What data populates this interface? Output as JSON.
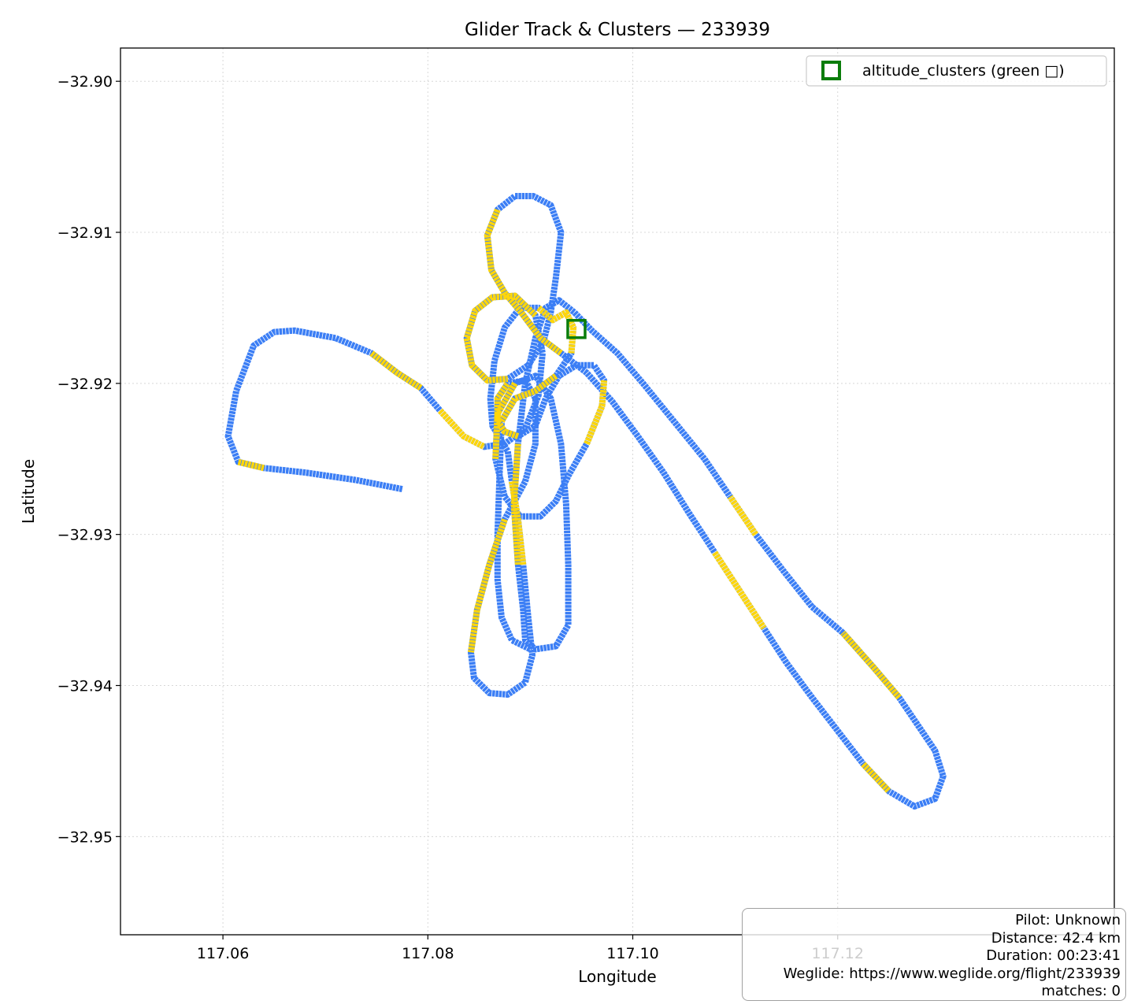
{
  "chart_data": {
    "type": "line",
    "title": "Glider Track & Clusters — 233939",
    "xlabel": "Longitude",
    "ylabel": "Latitude",
    "xlim": [
      117.05,
      117.147
    ],
    "ylim": [
      -32.9565,
      -32.8978
    ],
    "x_ticks": [
      117.06,
      117.08,
      117.1,
      117.12
    ],
    "x_tick_labels": [
      "117.06",
      "117.08",
      "117.10",
      "117.12"
    ],
    "y_ticks": [
      -32.9,
      -32.91,
      -32.92,
      -32.93,
      -32.94,
      -32.95
    ],
    "y_tick_labels": [
      "−32.90",
      "−32.91",
      "−32.92",
      "−32.93",
      "−32.94",
      "−32.95"
    ],
    "grid": true,
    "legend": {
      "placement": "top-right",
      "label": "altitude_clusters (green □)"
    },
    "colors": {
      "track": "#3b7ef5",
      "highlight": "#ffd60a",
      "cluster": "#0a7d0a",
      "grid": "#d8d8d8"
    },
    "series": [
      {
        "type": "track",
        "points": [
          [
            117.0775,
            -32.927
          ],
          [
            117.073,
            -32.9264
          ],
          [
            117.068,
            -32.9259
          ],
          [
            117.064,
            -32.9256
          ],
          [
            117.0615,
            -32.9252
          ],
          [
            117.0605,
            -32.9235
          ],
          [
            117.0613,
            -32.9205
          ],
          [
            117.063,
            -32.9175
          ],
          [
            117.065,
            -32.9166
          ],
          [
            117.067,
            -32.9165
          ],
          [
            117.071,
            -32.917
          ],
          [
            117.0745,
            -32.918
          ],
          [
            117.077,
            -32.9193
          ],
          [
            117.0793,
            -32.9203
          ],
          [
            117.0812,
            -32.9218
          ],
          [
            117.0835,
            -32.9235
          ],
          [
            117.0855,
            -32.9242
          ],
          [
            117.0875,
            -32.924
          ],
          [
            117.0895,
            -32.923
          ],
          [
            117.0908,
            -32.9208
          ],
          [
            117.0912,
            -32.918
          ],
          [
            117.0905,
            -32.9155
          ],
          [
            117.0885,
            -32.9142
          ],
          [
            117.0863,
            -32.9143
          ],
          [
            117.0846,
            -32.9152
          ],
          [
            117.0838,
            -32.917
          ],
          [
            117.0843,
            -32.9188
          ],
          [
            117.0858,
            -32.9198
          ],
          [
            117.0878,
            -32.9197
          ],
          [
            117.0898,
            -32.9188
          ],
          [
            117.0913,
            -32.9172
          ],
          [
            117.092,
            -32.9153
          ],
          [
            117.0925,
            -32.913
          ],
          [
            117.093,
            -32.91
          ],
          [
            117.092,
            -32.9082
          ],
          [
            117.0903,
            -32.9076
          ],
          [
            117.0885,
            -32.9076
          ],
          [
            117.0868,
            -32.9085
          ],
          [
            117.0858,
            -32.9102
          ],
          [
            117.0862,
            -32.9125
          ],
          [
            117.0875,
            -32.914
          ],
          [
            117.089,
            -32.9152
          ],
          [
            117.091,
            -32.917
          ],
          [
            117.093,
            -32.918
          ],
          [
            117.0955,
            -32.9193
          ],
          [
            117.098,
            -32.9212
          ],
          [
            117.1005,
            -32.9235
          ],
          [
            117.103,
            -32.9259
          ],
          [
            117.1055,
            -32.9286
          ],
          [
            117.108,
            -32.9312
          ],
          [
            117.1105,
            -32.9338
          ],
          [
            117.1128,
            -32.9362
          ],
          [
            117.115,
            -32.9385
          ],
          [
            117.1175,
            -32.9408
          ],
          [
            117.12,
            -32.943
          ],
          [
            117.1225,
            -32.9452
          ],
          [
            117.125,
            -32.947
          ],
          [
            117.1275,
            -32.948
          ],
          [
            117.1295,
            -32.9475
          ],
          [
            117.1303,
            -32.946
          ],
          [
            117.1295,
            -32.9443
          ],
          [
            117.128,
            -32.9428
          ],
          [
            117.126,
            -32.9408
          ],
          [
            117.1235,
            -32.9388
          ],
          [
            117.1205,
            -32.9365
          ],
          [
            117.1175,
            -32.9348
          ],
          [
            117.1148,
            -32.9325
          ],
          [
            117.112,
            -32.93
          ],
          [
            117.1095,
            -32.9275
          ],
          [
            117.107,
            -32.925
          ],
          [
            117.104,
            -32.9225
          ],
          [
            117.101,
            -32.92
          ],
          [
            117.0985,
            -32.918
          ],
          [
            117.096,
            -32.9165
          ],
          [
            117.0943,
            -32.9153
          ],
          [
            117.0928,
            -32.9145
          ],
          [
            117.0915,
            -32.915
          ],
          [
            117.0905,
            -32.917
          ],
          [
            117.0895,
            -32.92
          ],
          [
            117.0888,
            -32.924
          ],
          [
            117.0884,
            -32.928
          ],
          [
            117.0888,
            -32.932
          ],
          [
            117.0893,
            -32.935
          ],
          [
            117.0895,
            -32.937
          ],
          [
            117.0905,
            -32.9376
          ],
          [
            117.0925,
            -32.9374
          ],
          [
            117.0937,
            -32.936
          ],
          [
            117.0937,
            -32.932
          ],
          [
            117.0935,
            -32.928
          ],
          [
            117.093,
            -32.924
          ],
          [
            117.092,
            -32.921
          ],
          [
            117.0905,
            -32.9195
          ],
          [
            117.0885,
            -32.92
          ],
          [
            117.0868,
            -32.922
          ],
          [
            117.0866,
            -32.925
          ],
          [
            117.0875,
            -32.9275
          ],
          [
            117.089,
            -32.9288
          ],
          [
            117.091,
            -32.9288
          ],
          [
            117.0925,
            -32.9278
          ],
          [
            117.0938,
            -32.926
          ],
          [
            117.0955,
            -32.924
          ],
          [
            117.097,
            -32.9215
          ],
          [
            117.0972,
            -32.9198
          ],
          [
            117.0962,
            -32.9188
          ],
          [
            117.0945,
            -32.9188
          ],
          [
            117.0928,
            -32.9195
          ],
          [
            117.0915,
            -32.921
          ],
          [
            117.0905,
            -32.9228
          ],
          [
            117.0888,
            -32.9235
          ],
          [
            117.0875,
            -32.9232
          ],
          [
            117.0868,
            -32.9225
          ],
          [
            117.0868,
            -32.921
          ],
          [
            117.0878,
            -32.92
          ],
          [
            117.0895,
            -32.9198
          ],
          [
            117.0905,
            -32.921
          ],
          [
            117.0905,
            -32.924
          ],
          [
            117.0895,
            -32.9265
          ],
          [
            117.0875,
            -32.929
          ],
          [
            117.086,
            -32.932
          ],
          [
            117.0848,
            -32.935
          ],
          [
            117.0842,
            -32.9378
          ],
          [
            117.0845,
            -32.9395
          ],
          [
            117.086,
            -32.9405
          ],
          [
            117.0878,
            -32.9406
          ],
          [
            117.0895,
            -32.9398
          ],
          [
            117.0902,
            -32.938
          ],
          [
            117.0898,
            -32.9355
          ],
          [
            117.0893,
            -32.932
          ],
          [
            117.0888,
            -32.929
          ],
          [
            117.0882,
            -32.9265
          ],
          [
            117.0878,
            -32.9245
          ],
          [
            117.0863,
            -32.9228
          ],
          [
            117.0861,
            -32.921
          ],
          [
            117.0865,
            -32.9185
          ],
          [
            117.0875,
            -32.9163
          ],
          [
            117.089,
            -32.915
          ],
          [
            117.0908,
            -32.915
          ],
          [
            117.0922,
            -32.9158
          ],
          [
            117.0935,
            -32.9153
          ],
          [
            117.0942,
            -32.9163
          ],
          [
            117.094,
            -32.918
          ],
          [
            117.0925,
            -32.9195
          ],
          [
            117.0905,
            -32.9205
          ],
          [
            117.0885,
            -32.921
          ],
          [
            117.0872,
            -32.9225
          ],
          [
            117.087,
            -32.926
          ],
          [
            117.0868,
            -32.93
          ],
          [
            117.0868,
            -32.933
          ],
          [
            117.0872,
            -32.9355
          ],
          [
            117.0882,
            -32.937
          ],
          [
            117.09,
            -32.9376
          ]
        ],
        "highlight_ranges": [
          [
            3,
            4
          ],
          [
            11,
            13
          ],
          [
            14,
            16
          ],
          [
            21,
            28
          ],
          [
            37,
            43
          ],
          [
            49,
            51
          ],
          [
            55,
            56
          ],
          [
            62,
            64
          ],
          [
            67,
            68
          ],
          [
            79,
            81
          ],
          [
            92,
            94
          ],
          [
            100,
            102
          ],
          [
            108,
            112
          ],
          [
            117,
            120
          ],
          [
            127,
            129
          ],
          [
            136,
            140
          ],
          [
            141,
            144
          ]
        ]
      }
    ],
    "clusters": [
      {
        "lon": 117.0945,
        "lat": -32.9164
      }
    ]
  },
  "info": {
    "pilot": "Pilot: Unknown",
    "distance": "Distance: 42.4 km",
    "duration": "Duration: 00:23:41",
    "weglide": "Weglide: https://www.weglide.org/flight/233939",
    "matches": "matches: 0"
  }
}
